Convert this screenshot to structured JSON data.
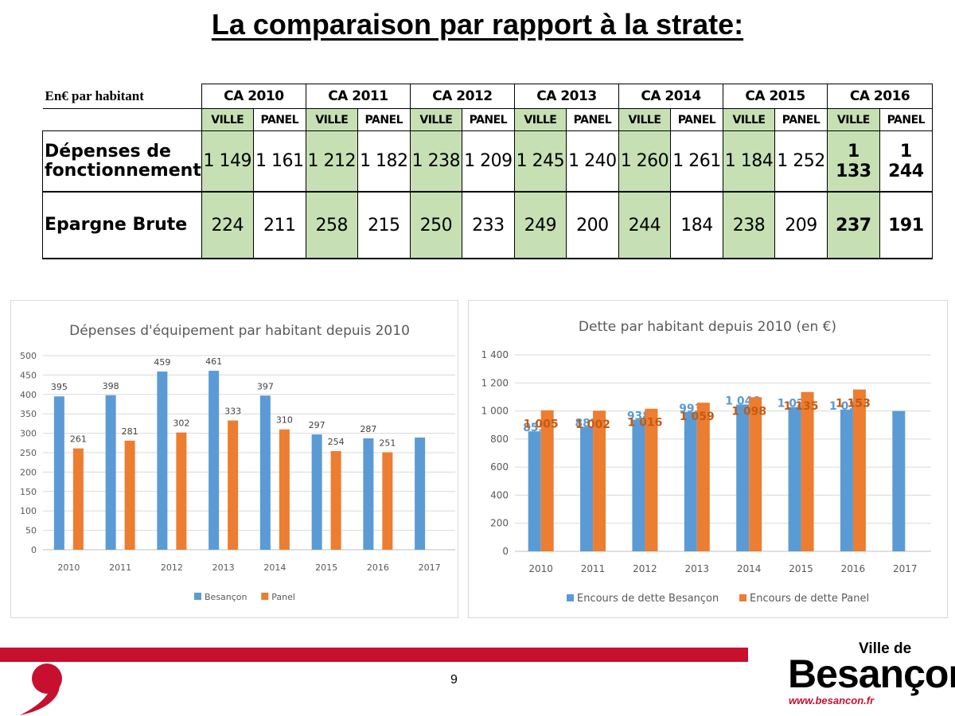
{
  "title": "La comparaison par rapport à la strate:",
  "table": {
    "corner": "En€ par habitant",
    "years": [
      "CA 2010",
      "CA 2011",
      "CA 2012",
      "CA 2013",
      "CA 2014",
      "CA 2015",
      "CA 2016"
    ],
    "sub_ville": "VILLE",
    "sub_panel": "PANEL",
    "rows": [
      {
        "label": "Dépenses de fonctionnement",
        "values": [
          "1 149",
          "1 161",
          "1 212",
          "1 182",
          "1 238",
          "1 209",
          "1 245",
          "1 240",
          "1 260",
          "1 261",
          "1 184",
          "1 252",
          "1 133",
          "1 244"
        ]
      },
      {
        "label": "Epargne Brute",
        "values": [
          "224",
          "211",
          "258",
          "215",
          "250",
          "233",
          "249",
          "200",
          "244",
          "184",
          "238",
          "209",
          "237",
          "191"
        ]
      }
    ]
  },
  "chart_data": [
    {
      "type": "bar",
      "title": "Dépenses d'équipement par habitant depuis 2010",
      "categories": [
        "2010",
        "2011",
        "2012",
        "2013",
        "2014",
        "2015",
        "2016",
        "2017"
      ],
      "series": [
        {
          "name": "Besançon",
          "values": [
            395,
            398,
            459,
            461,
            397,
            297,
            287,
            289
          ],
          "labels": [
            "395",
            "398",
            "459",
            "461",
            "397",
            "297",
            "287",
            ""
          ],
          "color": "#5b9bd5"
        },
        {
          "name": "Panel",
          "values": [
            261,
            281,
            302,
            333,
            310,
            254,
            251,
            null
          ],
          "labels": [
            "261",
            "281",
            "302",
            "333",
            "310",
            "254",
            "251",
            ""
          ],
          "color": "#ed7d31"
        }
      ],
      "ylim": [
        0,
        500
      ],
      "yticks": [
        0,
        50,
        100,
        150,
        200,
        250,
        300,
        350,
        400,
        450,
        500
      ],
      "ytick_labels": [
        "0",
        "50",
        "100",
        "150",
        "200",
        "250",
        "300",
        "350",
        "400",
        "450",
        "500"
      ],
      "grid": true,
      "legend": "bottom"
    },
    {
      "type": "bar",
      "title": "Dette par habitant depuis 2010 (en €)",
      "categories": [
        "2010",
        "2011",
        "2012",
        "2013",
        "2014",
        "2015",
        "2016",
        "2017"
      ],
      "series": [
        {
          "name": "Encours de dette Besançon",
          "values": [
            855,
            887,
            938,
            993,
            1046,
            1028,
            1010,
            1000
          ],
          "labels": [
            "855",
            "887",
            "938",
            "993",
            "1 046",
            "1 028",
            "1 010",
            ""
          ],
          "color": "#5b9bd5"
        },
        {
          "name": "Encours de dette Panel",
          "values": [
            1005,
            1002,
            1016,
            1059,
            1098,
            1135,
            1153,
            null
          ],
          "labels": [
            "1 005",
            "1 002",
            "1 016",
            "1 059",
            "1 098",
            "1 135",
            "1 153",
            ""
          ],
          "color": "#ed7d31"
        }
      ],
      "ylim": [
        0,
        1400
      ],
      "yticks": [
        0,
        200,
        400,
        600,
        800,
        1000,
        1200,
        1400
      ],
      "ytick_labels": [
        "0",
        "200",
        "400",
        "600",
        "800",
        "1 000",
        "1 200",
        "1 400"
      ],
      "grid": true,
      "legend": "bottom"
    }
  ],
  "footer": {
    "page_number": "9",
    "logo_line1": "Ville de",
    "logo_name": "Besançon",
    "logo_url": "www.besancon.fr"
  }
}
